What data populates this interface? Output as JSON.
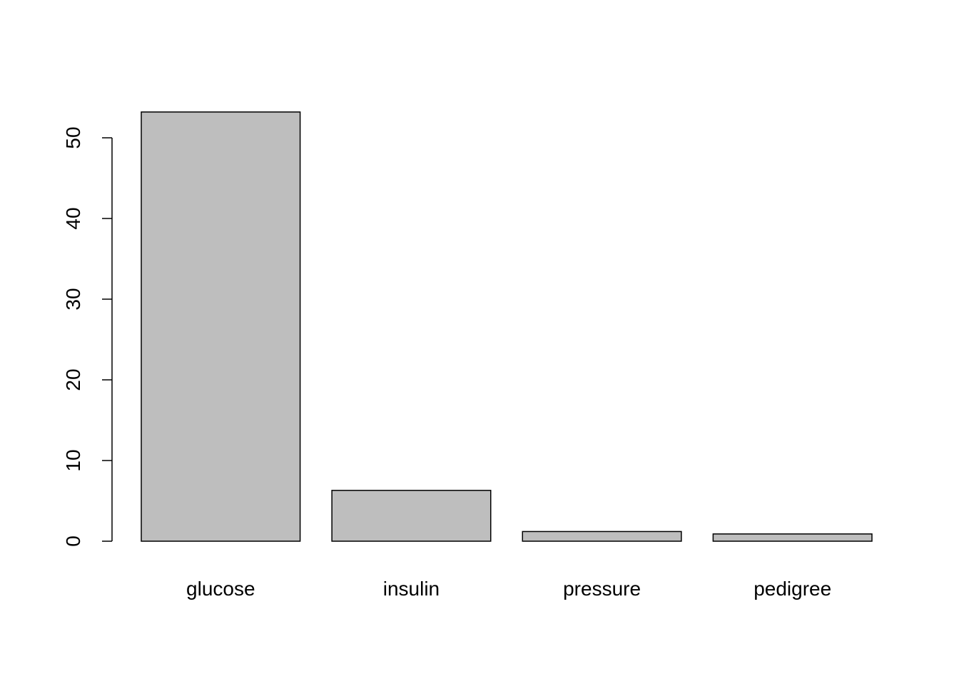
{
  "chart_data": {
    "type": "bar",
    "categories": [
      "glucose",
      "insulin",
      "pressure",
      "pedigree"
    ],
    "values": [
      53.2,
      6.3,
      1.2,
      0.9
    ],
    "y_ticks": [
      0,
      10,
      20,
      30,
      40,
      50
    ],
    "ylim": [
      0,
      55.6
    ],
    "grid": false,
    "legend": "none",
    "colors": {
      "bar_fill": "#bebebe",
      "bar_stroke": "#000000",
      "axis": "#000000"
    }
  }
}
